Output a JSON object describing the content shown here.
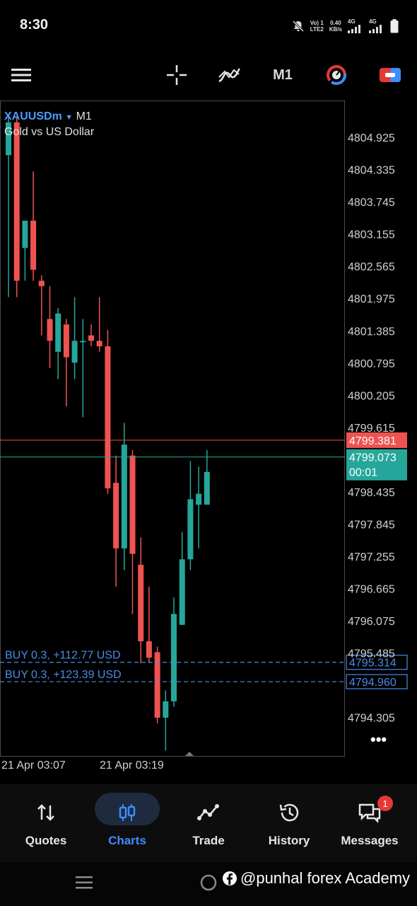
{
  "status": {
    "time": "8:30",
    "volte": "Vo) 1",
    "lte": "LTE2",
    "speed": "0.40",
    "speed_unit": "KB/s",
    "net1": "4G",
    "net2": "4G"
  },
  "toolbar": {
    "timeframe": "M1"
  },
  "chart": {
    "symbol": "XAUUSDm",
    "timeframe": "M1",
    "description": "Gold vs US Dollar",
    "ask_price": "4799.381",
    "bid_price": "4799.073",
    "countdown": "00:01",
    "colors": {
      "up": "#26a69a",
      "down": "#ef5350",
      "ask_line": "#ef5350",
      "bid_line": "#26a69a",
      "trade": "#4a8ce8"
    },
    "price_ticks": [
      "4804.925",
      "4804.335",
      "4803.745",
      "4803.155",
      "4802.565",
      "4801.975",
      "4801.385",
      "4800.795",
      "4800.205",
      "4799.615",
      "4798.435",
      "4797.845",
      "4797.255",
      "4796.665",
      "4796.075",
      "4795.485",
      "4794.305"
    ],
    "time_ticks": [
      "21 Apr 03:07",
      "21 Apr 03:19"
    ],
    "trades": [
      {
        "label": "BUY 0.3,  +112.77 USD",
        "price": "4795.314"
      },
      {
        "label": "BUY 0.3,  +123.39 USD",
        "price": "4794.960"
      }
    ],
    "more_label": "•••"
  },
  "chart_data": {
    "type": "candlestick",
    "symbol": "XAUUSDm",
    "timeframe": "M1",
    "ylim": [
      4793.6,
      4805.6
    ],
    "candles": [
      {
        "o": 4804.6,
        "h": 4805.3,
        "l": 4802.0,
        "c": 4805.2
      },
      {
        "o": 4805.2,
        "h": 4805.3,
        "l": 4802.0,
        "c": 4802.3
      },
      {
        "o": 4802.9,
        "h": 4803.3,
        "l": 4802.3,
        "c": 4803.4
      },
      {
        "o": 4803.4,
        "h": 4804.3,
        "l": 4802.3,
        "c": 4802.5
      },
      {
        "o": 4802.3,
        "h": 4802.4,
        "l": 4801.3,
        "c": 4802.2
      },
      {
        "o": 4801.6,
        "h": 4802.2,
        "l": 4800.7,
        "c": 4801.2
      },
      {
        "o": 4801.0,
        "h": 4801.8,
        "l": 4800.5,
        "c": 4801.7
      },
      {
        "o": 4801.5,
        "h": 4801.6,
        "l": 4800.0,
        "c": 4800.9
      },
      {
        "o": 4800.8,
        "h": 4802.0,
        "l": 4800.5,
        "c": 4801.2
      },
      {
        "o": 4801.2,
        "h": 4801.6,
        "l": 4799.8,
        "c": 4801.2
      },
      {
        "o": 4801.3,
        "h": 4801.5,
        "l": 4801.1,
        "c": 4801.2
      },
      {
        "o": 4801.2,
        "h": 4802.0,
        "l": 4801.0,
        "c": 4801.1
      },
      {
        "o": 4801.1,
        "h": 4801.4,
        "l": 4798.4,
        "c": 4798.5
      },
      {
        "o": 4798.6,
        "h": 4799.1,
        "l": 4796.7,
        "c": 4797.4
      },
      {
        "o": 4797.4,
        "h": 4799.7,
        "l": 4797.0,
        "c": 4799.3
      },
      {
        "o": 4799.1,
        "h": 4799.2,
        "l": 4796.2,
        "c": 4797.3
      },
      {
        "o": 4797.1,
        "h": 4797.6,
        "l": 4795.3,
        "c": 4795.7
      },
      {
        "o": 4795.7,
        "h": 4796.7,
        "l": 4795.3,
        "c": 4795.4
      },
      {
        "o": 4795.5,
        "h": 4795.6,
        "l": 4794.2,
        "c": 4794.3
      },
      {
        "o": 4794.3,
        "h": 4794.8,
        "l": 4793.7,
        "c": 4794.6
      },
      {
        "o": 4794.6,
        "h": 4796.5,
        "l": 4794.5,
        "c": 4796.2
      },
      {
        "o": 4796.0,
        "h": 4797.7,
        "l": 4796.0,
        "c": 4797.2
      },
      {
        "o": 4797.2,
        "h": 4799.0,
        "l": 4797.0,
        "c": 4798.3
      },
      {
        "o": 4798.2,
        "h": 4798.9,
        "l": 4797.4,
        "c": 4798.4
      },
      {
        "o": 4798.2,
        "h": 4799.2,
        "l": 4798.2,
        "c": 4798.8
      }
    ],
    "ask_price": 4799.381,
    "bid_price": 4799.073,
    "trade_levels": [
      4795.314,
      4794.96
    ],
    "xlabels": [
      "21 Apr 03:07",
      "21 Apr 03:19"
    ]
  },
  "nav": {
    "items": [
      {
        "label": "Quotes",
        "icon": "quotes-icon"
      },
      {
        "label": "Charts",
        "icon": "charts-icon"
      },
      {
        "label": "Trade",
        "icon": "trade-icon"
      },
      {
        "label": "History",
        "icon": "history-icon"
      },
      {
        "label": "Messages",
        "icon": "messages-icon"
      }
    ],
    "messages_badge": "1"
  },
  "watermark": {
    "text": "@punhal forex Academy"
  }
}
